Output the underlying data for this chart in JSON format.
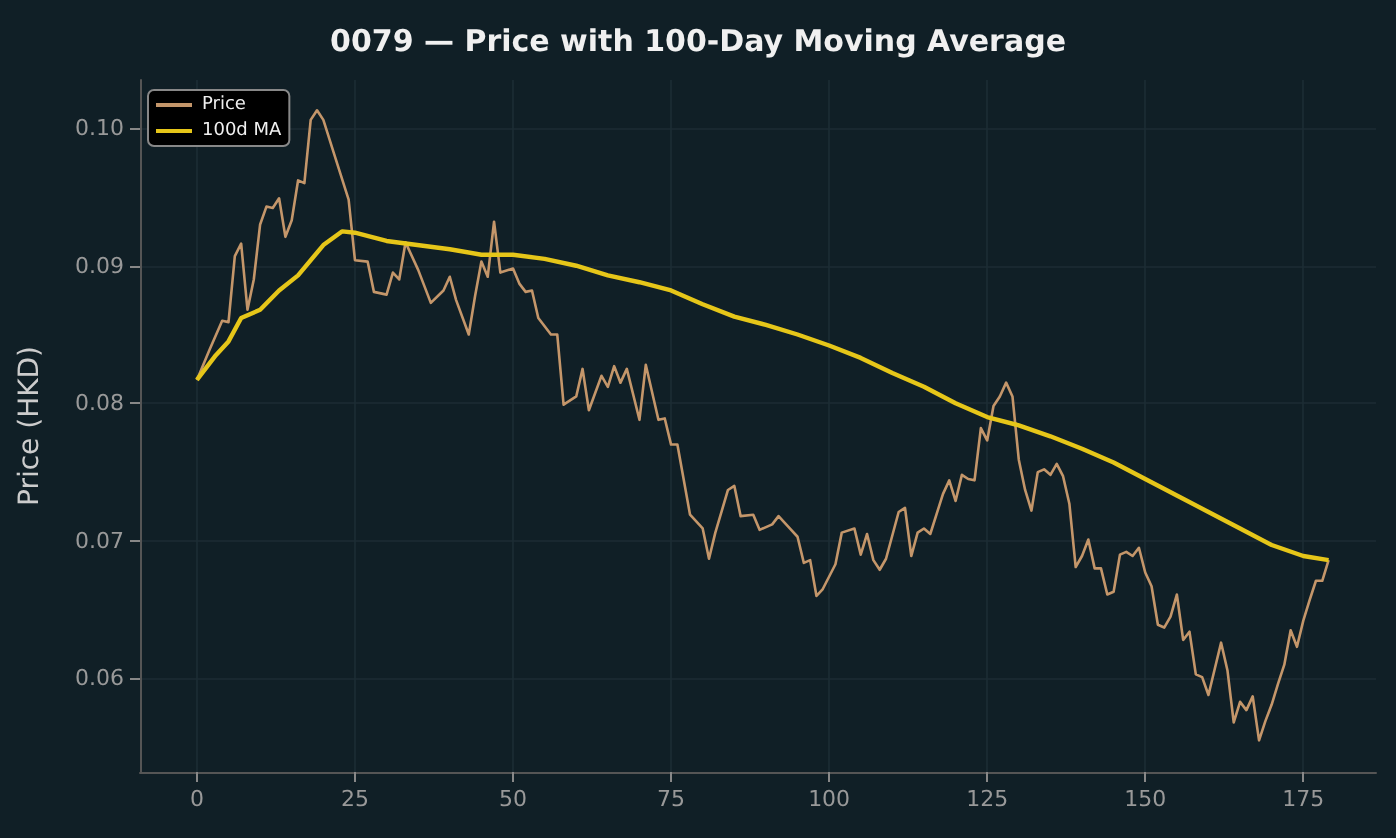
{
  "chart_data": {
    "type": "line",
    "title": "0079 — Price with 100-Day Moving Average",
    "ylabel": "Price (HKD)",
    "xlim": [
      -9,
      186.5
    ],
    "xticks": [
      0,
      25,
      50,
      75,
      100,
      125,
      150,
      175
    ],
    "ylim": [
      0.0532,
      0.1035
    ],
    "yticks": [
      {
        "value": 0.06,
        "label": "0.06"
      },
      {
        "value": 0.07,
        "label": "0.07"
      },
      {
        "value": 0.08,
        "label": "0.08"
      },
      {
        "value": 0.09,
        "label": "0.09"
      },
      {
        "value": 0.1,
        "label": "0.10"
      }
    ],
    "grid": true,
    "legend": "top left",
    "marker": "none",
    "line_style": "solid",
    "series": [
      {
        "name": "Price",
        "color": "#c4966a",
        "x": [
          0,
          2,
          4,
          5,
          6,
          7,
          8,
          9,
          10,
          11,
          12,
          13,
          14,
          15,
          16,
          17,
          18,
          19,
          20,
          22,
          24,
          25,
          27,
          28,
          30,
          31,
          32,
          33,
          35,
          36,
          37,
          39,
          40,
          41,
          43,
          44,
          45,
          46,
          47,
          48,
          50,
          51,
          52,
          53,
          54,
          56,
          57,
          58,
          60,
          61,
          62,
          64,
          65,
          66,
          67,
          68,
          70,
          71,
          73,
          74,
          75,
          76,
          78,
          80,
          81,
          82,
          84,
          85,
          86,
          88,
          89,
          91,
          92,
          94,
          95,
          96,
          97,
          98,
          99,
          101,
          102,
          104,
          105,
          106,
          107,
          108,
          109,
          111,
          112,
          113,
          114,
          115,
          116,
          118,
          119,
          120,
          121,
          122,
          123,
          124,
          125,
          126,
          127,
          128,
          129,
          130,
          131,
          132,
          133,
          134,
          135,
          136,
          137,
          138,
          139,
          140,
          141,
          142,
          143,
          144,
          145,
          146,
          147,
          148,
          149,
          150,
          151,
          152,
          153,
          154,
          155,
          156,
          157,
          158,
          159,
          160,
          161,
          162,
          163,
          164,
          165,
          166,
          167,
          168,
          169,
          170,
          171,
          172,
          173,
          174,
          175,
          176,
          177,
          178,
          179
        ],
        "values": [
          0.0817,
          0.0839,
          0.086,
          0.0859,
          0.0907,
          0.0916,
          0.0868,
          0.089,
          0.093,
          0.0943,
          0.0942,
          0.0949,
          0.0921,
          0.0933,
          0.0962,
          0.096,
          0.1006,
          0.1013,
          0.1006,
          0.0977,
          0.0948,
          0.0904,
          0.0903,
          0.0881,
          0.0879,
          0.0895,
          0.089,
          0.0917,
          0.0897,
          0.0885,
          0.0873,
          0.0882,
          0.0892,
          0.0875,
          0.085,
          0.0878,
          0.0903,
          0.0892,
          0.0932,
          0.0895,
          0.0898,
          0.0887,
          0.0881,
          0.0882,
          0.0862,
          0.085,
          0.085,
          0.0799,
          0.0805,
          0.0825,
          0.0795,
          0.082,
          0.0812,
          0.0827,
          0.0815,
          0.0825,
          0.0788,
          0.0828,
          0.0788,
          0.0789,
          0.077,
          0.077,
          0.0719,
          0.0709,
          0.0687,
          0.0706,
          0.0737,
          0.074,
          0.0718,
          0.0719,
          0.0708,
          0.0712,
          0.0718,
          0.0708,
          0.0703,
          0.0684,
          0.0686,
          0.066,
          0.0665,
          0.0683,
          0.0706,
          0.0709,
          0.069,
          0.0705,
          0.0686,
          0.0679,
          0.0687,
          0.0721,
          0.0724,
          0.0689,
          0.0706,
          0.0709,
          0.0705,
          0.0734,
          0.0744,
          0.0729,
          0.0748,
          0.0745,
          0.0744,
          0.0782,
          0.0773,
          0.0798,
          0.0805,
          0.0815,
          0.0805,
          0.0759,
          0.0737,
          0.0722,
          0.075,
          0.0752,
          0.0748,
          0.0756,
          0.0747,
          0.0727,
          0.0681,
          0.0689,
          0.0701,
          0.068,
          0.068,
          0.0661,
          0.0663,
          0.069,
          0.0692,
          0.0689,
          0.0695,
          0.0677,
          0.0667,
          0.0639,
          0.0637,
          0.0645,
          0.0661,
          0.0628,
          0.0634,
          0.0603,
          0.0601,
          0.0588,
          0.0607,
          0.0626,
          0.0606,
          0.0568,
          0.0583,
          0.0577,
          0.0587,
          0.0555,
          0.0569,
          0.0581,
          0.0596,
          0.061,
          0.0635,
          0.0623,
          0.0642,
          0.0657,
          0.0671,
          0.0671,
          0.0686
        ]
      },
      {
        "name": "100d MA",
        "color": "#e6c619",
        "x": [
          0,
          3,
          5,
          7,
          10,
          13,
          16,
          20,
          23,
          25,
          30,
          40,
          45,
          50,
          55,
          60,
          65,
          70,
          75,
          80,
          85,
          90,
          95,
          100,
          105,
          110,
          115,
          120,
          125,
          130,
          135,
          140,
          145,
          150,
          155,
          160,
          165,
          170,
          175,
          179
        ],
        "values": [
          0.0817,
          0.0835,
          0.0845,
          0.0862,
          0.0868,
          0.0882,
          0.0893,
          0.0915,
          0.0925,
          0.0924,
          0.0918,
          0.0912,
          0.0908,
          0.0908,
          0.0905,
          0.09,
          0.0893,
          0.0888,
          0.0882,
          0.0872,
          0.0863,
          0.0857,
          0.085,
          0.0842,
          0.0833,
          0.0822,
          0.0812,
          0.08,
          0.079,
          0.0784,
          0.0776,
          0.0767,
          0.0757,
          0.0745,
          0.0733,
          0.0721,
          0.0709,
          0.0697,
          0.0689,
          0.0686
        ]
      }
    ]
  }
}
